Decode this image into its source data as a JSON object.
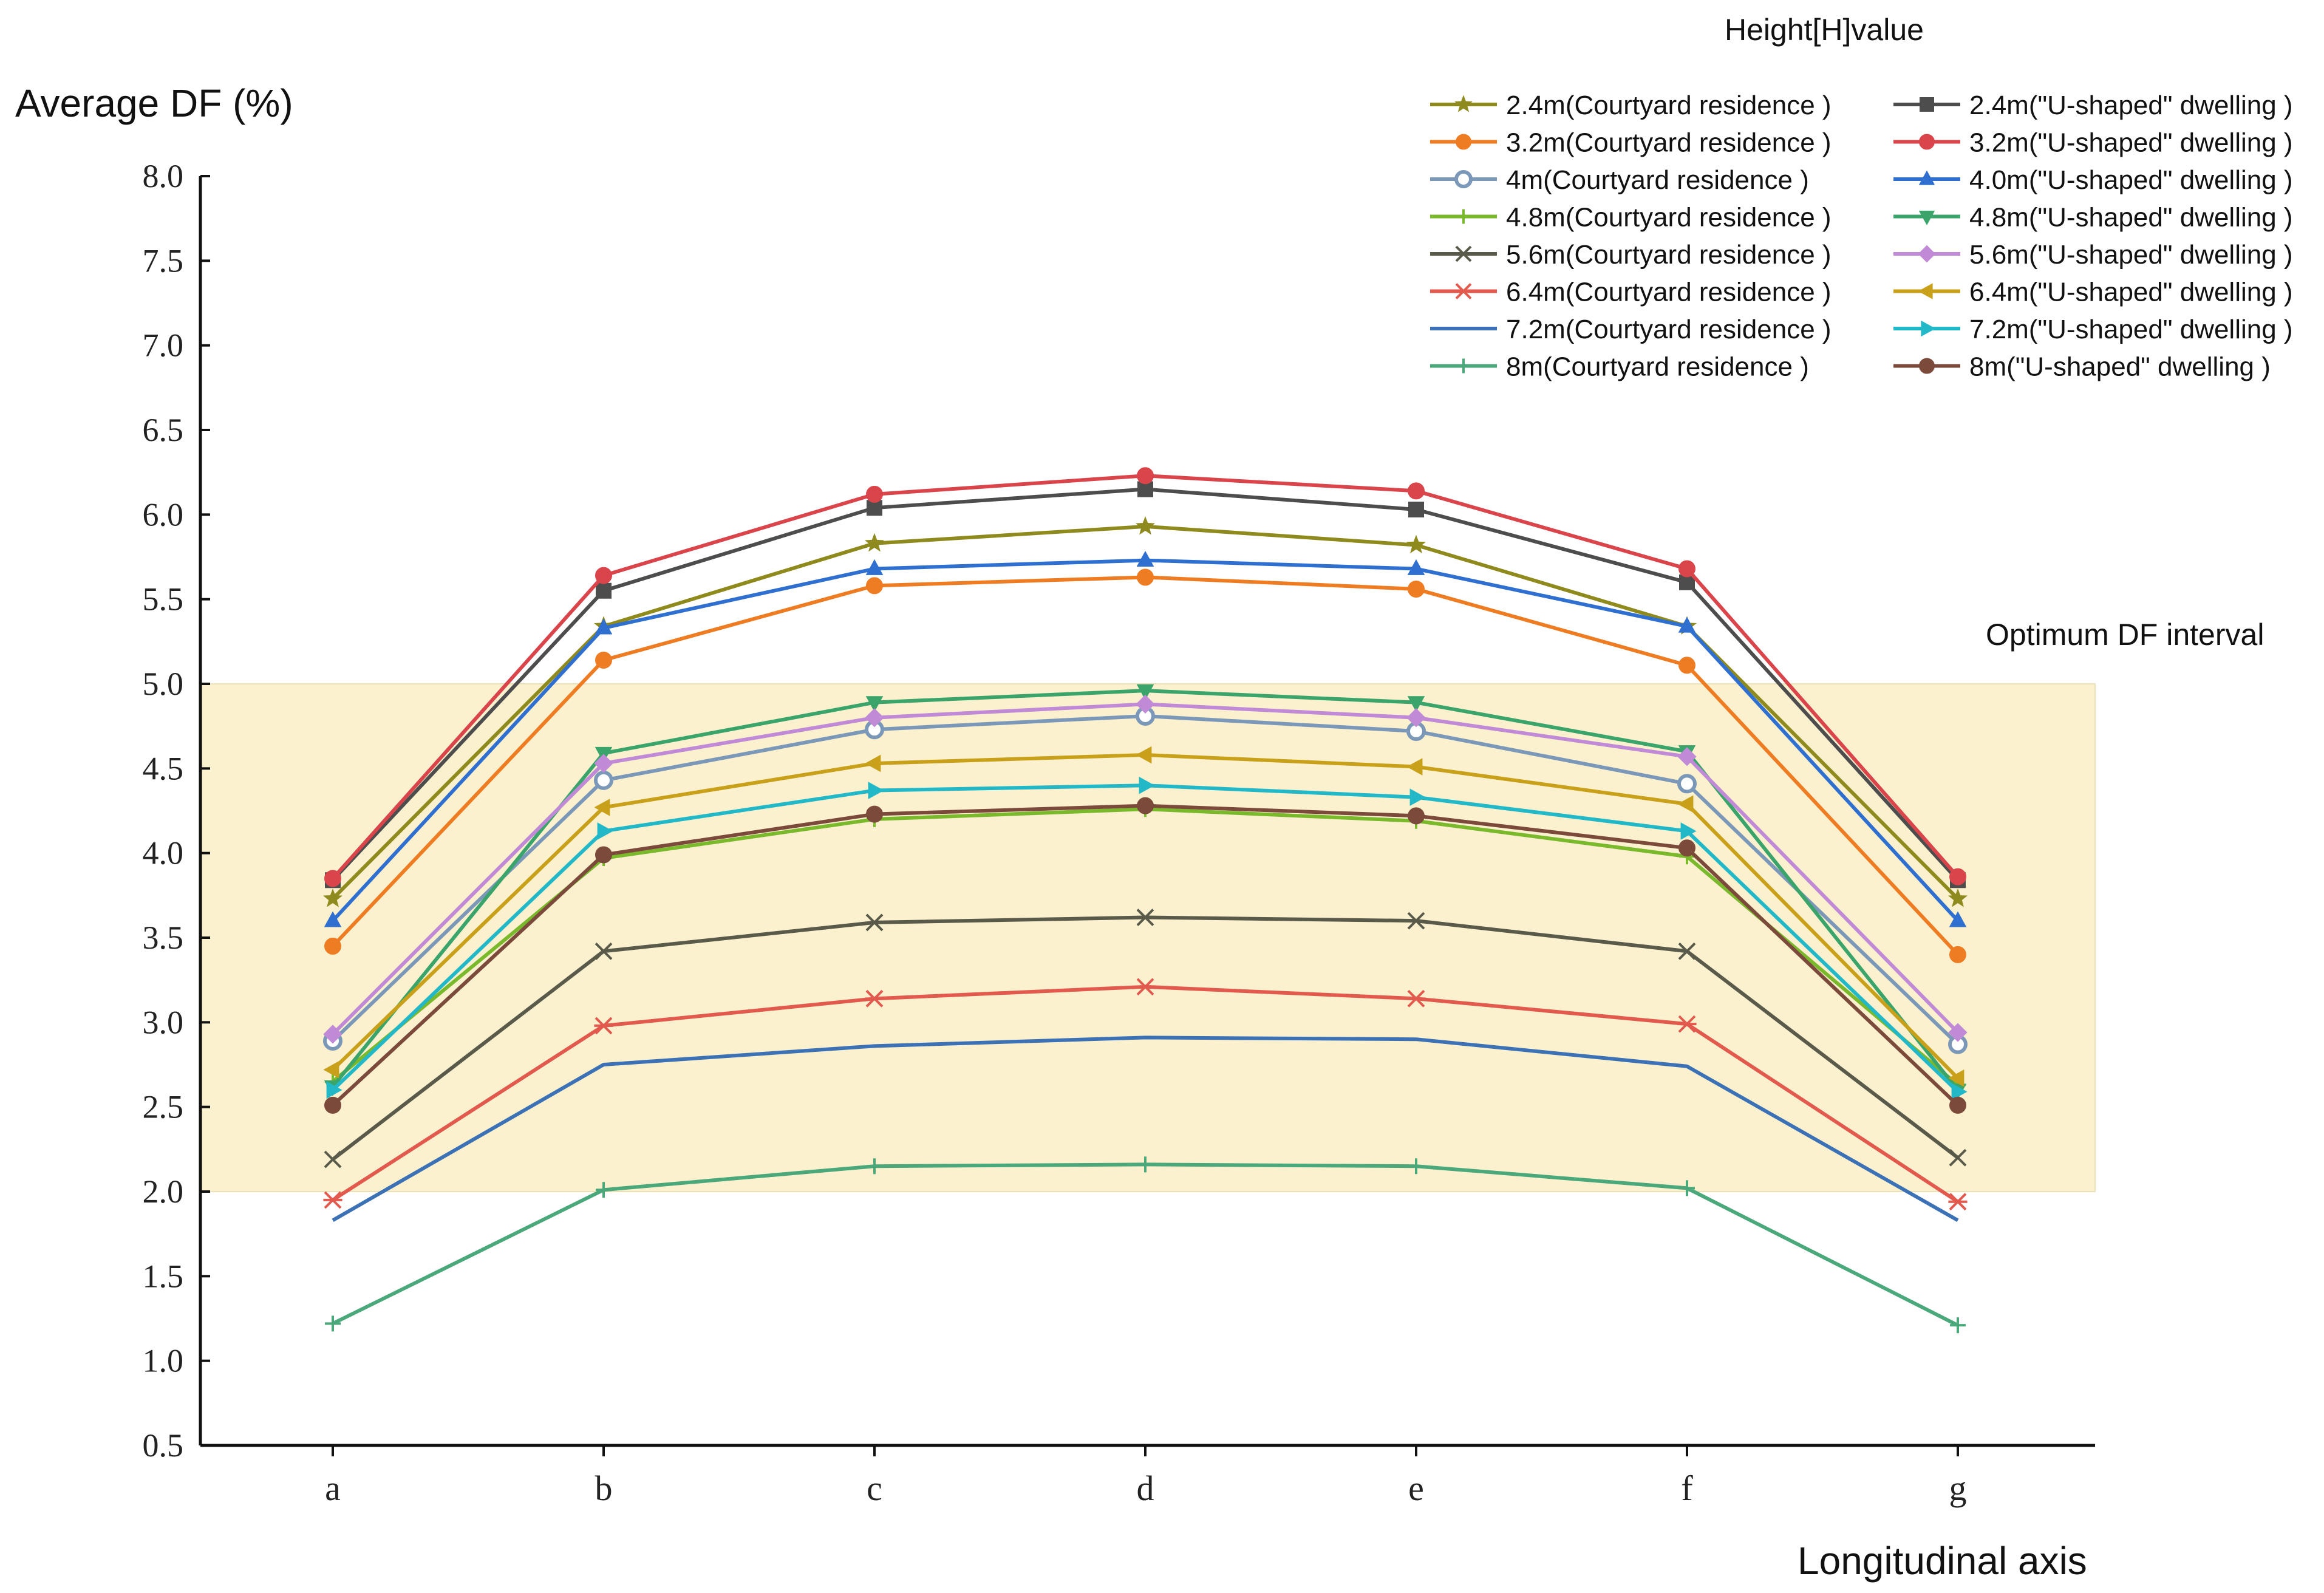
{
  "chart_data": {
    "type": "line",
    "title": "",
    "ylabel": "Average DF (%)",
    "xlabel": "Longitudinal axis",
    "legend_title": "Height[H]value",
    "categories": [
      "a",
      "b",
      "c",
      "d",
      "e",
      "f",
      "g"
    ],
    "ylim": [
      0.5,
      8.0
    ],
    "yticks": [
      "0.5",
      "1.0",
      "1.5",
      "2.0",
      "2.5",
      "3.0",
      "3.5",
      "4.0",
      "4.5",
      "5.0",
      "5.5",
      "6.0",
      "6.5",
      "7.0",
      "7.5",
      "8.0"
    ],
    "band": {
      "from": 2.0,
      "to": 5.0,
      "label": "Optimum DF interval",
      "color": "#fbf1cf"
    },
    "series": [
      {
        "name": "2.4m(Courtyard residence )",
        "color": "#8f8a1e",
        "marker": "star",
        "values": [
          3.73,
          5.34,
          5.83,
          5.93,
          5.82,
          5.34,
          3.73
        ]
      },
      {
        "name": "3.2m(Courtyard residence )",
        "color": "#ee7c23",
        "marker": "circle",
        "values": [
          3.45,
          5.14,
          5.58,
          5.63,
          5.56,
          5.11,
          3.4
        ]
      },
      {
        "name": "4m(Courtyard residence )",
        "color": "#7b98b8",
        "marker": "hollow-circle",
        "values": [
          2.89,
          4.43,
          4.73,
          4.81,
          4.72,
          4.41,
          2.87
        ]
      },
      {
        "name": "4.8m(Courtyard residence )",
        "color": "#7ab82c",
        "marker": "plus",
        "values": [
          2.65,
          3.97,
          4.2,
          4.26,
          4.19,
          3.98,
          2.63
        ]
      },
      {
        "name": "5.6m(Courtyard residence )",
        "color": "#5a5a4a",
        "marker": "cross",
        "values": [
          2.19,
          3.42,
          3.59,
          3.62,
          3.6,
          3.42,
          2.2
        ]
      },
      {
        "name": "6.4m(Courtyard residence )",
        "color": "#e25a4e",
        "marker": "asterisk",
        "values": [
          1.95,
          2.98,
          3.14,
          3.21,
          3.14,
          2.99,
          1.94
        ]
      },
      {
        "name": "7.2m(Courtyard residence )",
        "color": "#3c72b5",
        "marker": "none",
        "values": [
          1.83,
          2.75,
          2.86,
          2.91,
          2.9,
          2.74,
          1.83
        ]
      },
      {
        "name": "8m(Courtyard residence )",
        "color": "#4aa87a",
        "marker": "plus",
        "values": [
          1.22,
          2.01,
          2.15,
          2.16,
          2.15,
          2.02,
          1.21
        ]
      },
      {
        "name": "2.4m(\"U-shaped\" dwelling )",
        "color": "#4d4d4d",
        "marker": "square",
        "values": [
          3.84,
          5.55,
          6.04,
          6.15,
          6.03,
          5.6,
          3.84
        ]
      },
      {
        "name": "3.2m(\"U-shaped\" dwelling )",
        "color": "#d9454a",
        "marker": "circle",
        "values": [
          3.85,
          5.64,
          6.12,
          6.23,
          6.14,
          5.68,
          3.86
        ]
      },
      {
        "name": "4.0m(\"U-shaped\" dwelling )",
        "color": "#2f6fcf",
        "marker": "triangle-up",
        "values": [
          3.6,
          5.33,
          5.68,
          5.73,
          5.68,
          5.34,
          3.6
        ]
      },
      {
        "name": "4.8m(\"U-shaped\" dwelling )",
        "color": "#3aa46a",
        "marker": "triangle-down",
        "values": [
          2.62,
          4.59,
          4.89,
          4.96,
          4.89,
          4.6,
          2.6
        ]
      },
      {
        "name": "5.6m(\"U-shaped\" dwelling )",
        "color": "#c08ad6",
        "marker": "diamond",
        "values": [
          2.93,
          4.53,
          4.8,
          4.88,
          4.8,
          4.57,
          2.94
        ]
      },
      {
        "name": "6.4m(\"U-shaped\" dwelling )",
        "color": "#c9a01a",
        "marker": "triangle-left",
        "values": [
          2.72,
          4.27,
          4.53,
          4.58,
          4.51,
          4.29,
          2.67
        ]
      },
      {
        "name": "7.2m(\"U-shaped\" dwelling )",
        "color": "#22b8c8",
        "marker": "triangle-right",
        "values": [
          2.6,
          4.13,
          4.37,
          4.4,
          4.33,
          4.13,
          2.59
        ]
      },
      {
        "name": "8m(\"U-shaped\" dwelling )",
        "color": "#7b4a3a",
        "marker": "circle",
        "values": [
          2.51,
          3.99,
          4.23,
          4.28,
          4.22,
          4.03,
          2.51
        ]
      }
    ]
  }
}
